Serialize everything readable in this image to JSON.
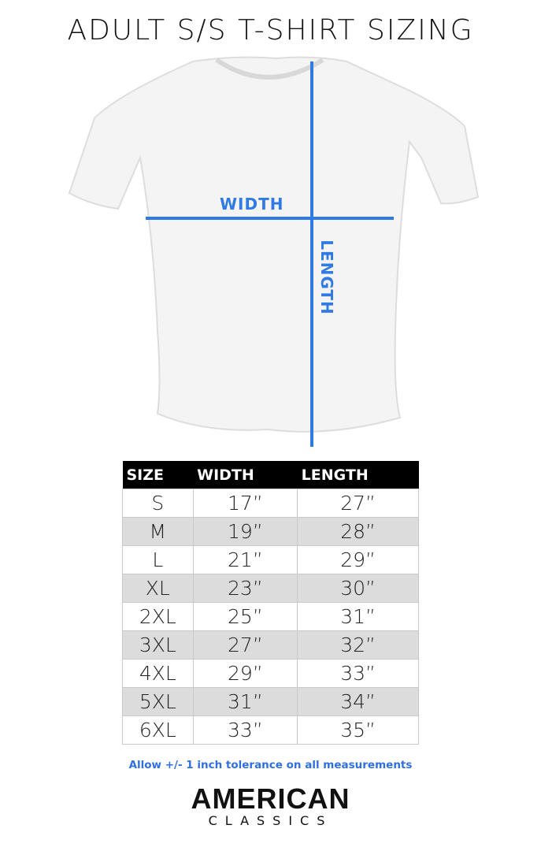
{
  "title": "ADULT S/S T-SHIRT SIZING",
  "diagram": {
    "width_label": "WIDTH",
    "length_label": "LENGTH",
    "line_color": "#2f7ae5"
  },
  "table": {
    "headers": [
      "SIZE",
      "WIDTH",
      "LENGTH"
    ],
    "rows": [
      [
        "S",
        "17”",
        "27”"
      ],
      [
        "M",
        "19”",
        "28”"
      ],
      [
        "L",
        "21”",
        "29”"
      ],
      [
        "XL",
        "23”",
        "30”"
      ],
      [
        "2XL",
        "25”",
        "31”"
      ],
      [
        "3XL",
        "27”",
        "32”"
      ],
      [
        "4XL",
        "29”",
        "33”"
      ],
      [
        "5XL",
        "31”",
        "34”"
      ],
      [
        "6XL",
        "33”",
        "35”"
      ]
    ]
  },
  "note": "Allow +/- 1 inch tolerance on all measurements",
  "logo": {
    "line1": "AMERICAN",
    "line2": "CLASSICS"
  }
}
